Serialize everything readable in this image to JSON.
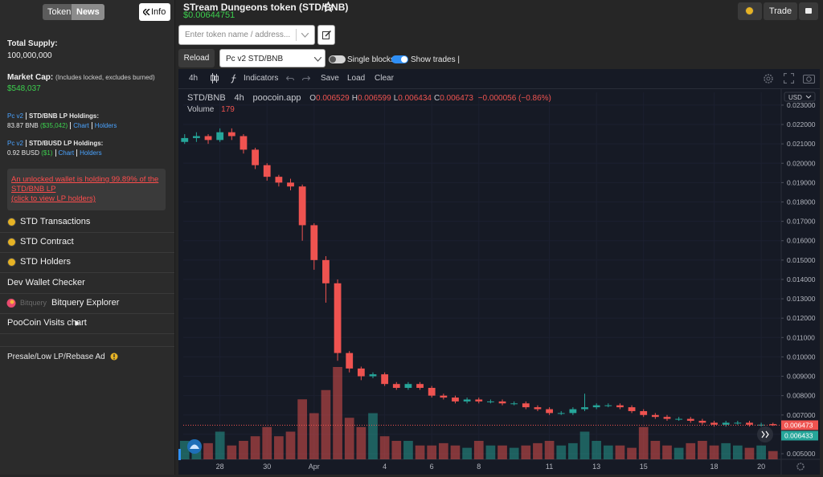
{
  "sidebar": {
    "tabs": [
      "Token",
      "News"
    ],
    "info_button": "Info",
    "total_supply_label": "Total Supply:",
    "total_supply": "100,000,000",
    "market_cap_label": "Market Cap:",
    "market_cap_note": "(Includes locked, excludes burned)",
    "market_cap": "$548,037",
    "lp_holdings": [
      {
        "source": "Pc v2",
        "title": "STD/BNB LP Holdings:",
        "amount": "83.87 BNB",
        "usd": "($35,042)",
        "links": [
          "Chart",
          "Holders"
        ]
      },
      {
        "source": "Pc v2",
        "title": "STD/BUSD LP Holdings:",
        "amount": "0.92 BUSD",
        "usd": "($1)",
        "links": [
          "Chart",
          "Holders"
        ]
      }
    ],
    "warning": {
      "text": "An unlocked wallet is holding 99.89% of the STD/BNB LP",
      "link": "(click to view LP holders)"
    },
    "menu": [
      "STD Transactions",
      "STD Contract",
      "STD Holders",
      "Dev Wallet Checker",
      "Bitquery Explorer",
      "PooCoin Visits chart"
    ],
    "bitquery_logo": "Bitquery",
    "ad": "Presale/Low LP/Rebase Ad"
  },
  "header": {
    "title": "STream Dungeons token (STD/BNB)",
    "price": "$0.00644751",
    "trade_button": "Trade",
    "search_placeholder": "Enter token name / address...",
    "reload": "Reload",
    "pair_select": "Pc v2 STD/BNB",
    "single_blocks": "Single blocks",
    "show_trades": "Show trades |"
  },
  "toolbar": {
    "indicators": "Indicators",
    "save": "Save",
    "load": "Load",
    "clear": "Clear"
  },
  "chart_data": {
    "type": "candlestick",
    "symbol": "STD/BNB",
    "interval": "4h",
    "source": "poocoin.app",
    "ohlc_legend": [
      {
        "label": "O",
        "value": "0.006529"
      },
      {
        "label": "H",
        "value": "0.006599"
      },
      {
        "label": "L",
        "value": "0.006434"
      },
      {
        "label": "C",
        "value": "0.006473"
      }
    ],
    "change": "−0.000056 (−0.86%)",
    "volume_label": "Volume",
    "currency": "USD",
    "up_color": "#26a69a",
    "down_color": "#ef5350",
    "grid": true,
    "x": [
      26.5,
      27,
      27.5,
      28,
      28.5,
      29,
      29.5,
      30,
      30.5,
      31,
      31.5,
      32,
      32.5,
      33,
      33.5,
      34,
      34.5,
      35,
      35.5,
      36,
      36.5,
      37,
      37.5,
      38,
      38.5,
      39,
      39.5,
      40,
      40.5,
      41,
      41.5,
      42,
      42.5,
      43,
      43.5,
      44,
      44.5,
      45,
      45.5,
      46,
      46.5,
      47,
      47.5,
      48,
      48.5,
      49,
      49.5,
      50,
      50.5,
      51,
      51.5
    ],
    "open": [
      0.0211,
      0.0213,
      0.0214,
      0.0212,
      0.0216,
      0.0214,
      0.0207,
      0.0199,
      0.0193,
      0.019,
      0.0188,
      0.0168,
      0.015,
      0.0138,
      0.0102,
      0.0094,
      0.009,
      0.0091,
      0.0086,
      0.0084,
      0.0086,
      0.0084,
      0.008,
      0.0079,
      0.0077,
      0.0078,
      0.0077,
      0.0077,
      0.0076,
      0.0076,
      0.0074,
      0.0073,
      0.0071,
      0.0071,
      0.0073,
      0.0074,
      0.0075,
      0.0075,
      0.0074,
      0.0072,
      0.007,
      0.0069,
      0.0068,
      0.0068,
      0.0067,
      0.0066,
      0.0065,
      0.0066,
      0.0066,
      0.0065,
      0.006529
    ],
    "high": [
      0.0215,
      0.0216,
      0.0215,
      0.0218,
      0.0218,
      0.0215,
      0.0208,
      0.02,
      0.0194,
      0.0192,
      0.0189,
      0.0169,
      0.0152,
      0.014,
      0.0103,
      0.0095,
      0.0092,
      0.0092,
      0.0087,
      0.0087,
      0.0087,
      0.0085,
      0.0081,
      0.008,
      0.0079,
      0.0079,
      0.0078,
      0.0078,
      0.0077,
      0.0077,
      0.0075,
      0.0074,
      0.0072,
      0.0074,
      0.0081,
      0.0076,
      0.0076,
      0.0076,
      0.0075,
      0.0073,
      0.0071,
      0.007,
      0.0069,
      0.0069,
      0.0068,
      0.0067,
      0.0067,
      0.0067,
      0.0067,
      0.0066,
      0.006599
    ],
    "low": [
      0.021,
      0.0211,
      0.021,
      0.0211,
      0.0212,
      0.0205,
      0.0197,
      0.0191,
      0.0188,
      0.0186,
      0.016,
      0.0145,
      0.0128,
      0.0098,
      0.0092,
      0.0088,
      0.0089,
      0.0085,
      0.0083,
      0.0083,
      0.0083,
      0.0079,
      0.0078,
      0.0076,
      0.0076,
      0.0076,
      0.0076,
      0.0075,
      0.0075,
      0.0073,
      0.0072,
      0.007,
      0.007,
      0.007,
      0.0072,
      0.0073,
      0.0074,
      0.0073,
      0.0071,
      0.0069,
      0.0068,
      0.0067,
      0.0067,
      0.0066,
      0.0065,
      0.0064,
      0.0064,
      0.0065,
      0.0064,
      0.0064,
      0.006434
    ],
    "close": [
      0.0213,
      0.0214,
      0.0212,
      0.0216,
      0.0214,
      0.0207,
      0.0199,
      0.0193,
      0.019,
      0.0188,
      0.0168,
      0.015,
      0.0138,
      0.0102,
      0.0094,
      0.009,
      0.0091,
      0.0086,
      0.0084,
      0.0086,
      0.0084,
      0.008,
      0.0079,
      0.0077,
      0.0078,
      0.0077,
      0.0077,
      0.0076,
      0.0076,
      0.0074,
      0.0073,
      0.0071,
      0.0071,
      0.0073,
      0.0074,
      0.0075,
      0.0075,
      0.0074,
      0.0072,
      0.007,
      0.0069,
      0.0068,
      0.0068,
      0.0067,
      0.0066,
      0.0065,
      0.0066,
      0.0066,
      0.0065,
      0.0065,
      0.006473
    ],
    "volume": [
      400,
      300,
      350,
      600,
      300,
      400,
      500,
      700,
      500,
      600,
      1300,
      1000,
      1500,
      2000,
      900,
      700,
      1000,
      500,
      400,
      400,
      300,
      300,
      350,
      300,
      250,
      400,
      300,
      300,
      250,
      300,
      350,
      400,
      300,
      350,
      600,
      400,
      300,
      300,
      250,
      700,
      400,
      300,
      250,
      350,
      400,
      300,
      350,
      300,
      250,
      300,
      179
    ],
    "xlim": [
      26.44,
      51.85
    ],
    "xticks": [
      28,
      30,
      {
        "value": 32,
        "label": "Apr"
      },
      {
        "value": 35,
        "label": "4"
      },
      {
        "value": 37,
        "label": "6"
      },
      {
        "value": 39,
        "label": "8"
      },
      {
        "value": 42,
        "label": "11"
      },
      {
        "value": 44,
        "label": "13"
      },
      {
        "value": 46,
        "label": "15"
      },
      {
        "value": 49,
        "label": "18"
      },
      {
        "value": 51,
        "label": "20"
      }
    ],
    "ylim": [
      0.00471,
      0.02366
    ],
    "yticks": [
      {
        "value": 0.005,
        "label": "0.005000"
      },
      {
        "value": 0.006,
        "label": "0.006000"
      },
      {
        "value": 0.007,
        "label": "0.007000"
      },
      {
        "value": 0.008,
        "label": "0.008000"
      },
      {
        "value": 0.009,
        "label": "0.009000"
      },
      {
        "value": 0.01,
        "label": "0.010000"
      },
      {
        "value": 0.011,
        "label": "0.011000"
      },
      {
        "value": 0.012,
        "label": "0.012000"
      },
      {
        "value": 0.013,
        "label": "0.013000"
      },
      {
        "value": 0.014,
        "label": "0.014000"
      },
      {
        "value": 0.015,
        "label": "0.015000"
      },
      {
        "value": 0.016,
        "label": "0.016000"
      },
      {
        "value": 0.017,
        "label": "0.017000"
      },
      {
        "value": 0.018,
        "label": "0.018000"
      },
      {
        "value": 0.019,
        "label": "0.019000"
      },
      {
        "value": 0.02,
        "label": "0.020000"
      },
      {
        "value": 0.021,
        "label": "0.021000"
      },
      {
        "value": 0.022,
        "label": "0.022000"
      },
      {
        "value": 0.023,
        "label": "0.023000"
      }
    ],
    "price_tags": [
      {
        "value": 0.006473,
        "color": "#ef5350"
      },
      {
        "value": 0.006433,
        "color": "#26a69a"
      }
    ]
  }
}
